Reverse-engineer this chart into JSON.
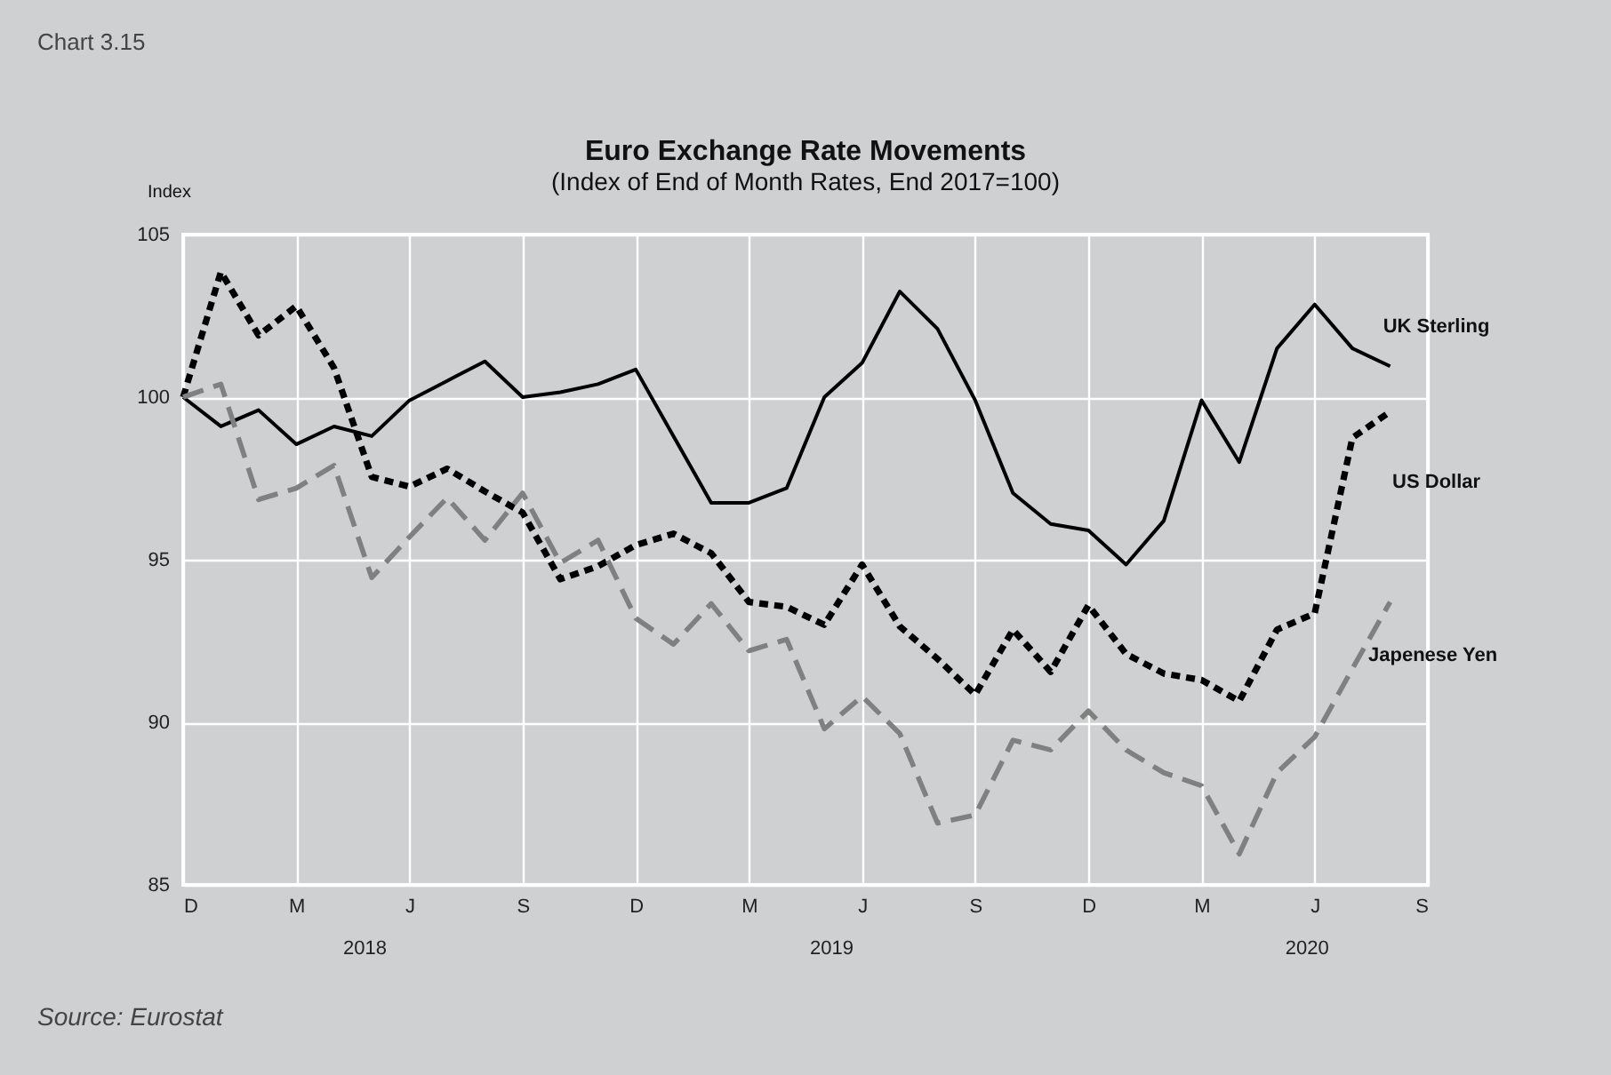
{
  "chart_data": {
    "type": "line",
    "title": "Euro Exchange Rate Movements",
    "subtitle": "(Index of End of Month Rates, End 2017=100)",
    "ylabel": "Index",
    "categories": [
      "D",
      null,
      null,
      "M",
      null,
      null,
      "J",
      null,
      null,
      "S",
      null,
      null,
      "D",
      null,
      null,
      "M",
      null,
      null,
      "J",
      null,
      null,
      "S",
      null,
      null,
      "D",
      null,
      null,
      "M",
      null,
      null,
      "J",
      null,
      null,
      "S"
    ],
    "series": [
      {
        "name": "UK Sterling",
        "color": "#000000",
        "line_style": "solid",
        "values": [
          100,
          99.1,
          99.6,
          98.55,
          99.1,
          98.8,
          99.9,
          100.5,
          101.1,
          100.0,
          100.15,
          100.4,
          100.85,
          98.8,
          96.75,
          96.75,
          97.2,
          100.0,
          101.05,
          103.25,
          102.1,
          99.9,
          97.05,
          96.1,
          95.9,
          94.85,
          96.2,
          99.9,
          98.0,
          101.5,
          102.85,
          101.5,
          100.95,
          null
        ]
      },
      {
        "name": "US Dollar",
        "color": "#000000",
        "line_style": "dotted",
        "values": [
          100,
          103.85,
          101.9,
          102.8,
          100.9,
          97.55,
          97.25,
          97.8,
          97.1,
          96.45,
          94.4,
          94.8,
          95.45,
          95.8,
          95.2,
          93.7,
          93.55,
          93.0,
          94.85,
          92.95,
          91.95,
          90.85,
          92.85,
          91.55,
          93.6,
          92.1,
          91.5,
          91.3,
          90.65,
          92.85,
          93.35,
          98.75,
          99.55,
          null
        ]
      },
      {
        "name": "Japenese Yen",
        "color": "#808080",
        "line_style": "dashed",
        "values": [
          100,
          100.4,
          96.85,
          97.2,
          97.9,
          94.45,
          95.7,
          96.9,
          95.6,
          97.05,
          94.9,
          95.6,
          93.2,
          92.4,
          93.65,
          92.2,
          92.55,
          89.8,
          90.8,
          89.65,
          86.9,
          87.15,
          89.45,
          89.15,
          90.35,
          89.15,
          88.45,
          88.05,
          85.95,
          88.45,
          89.55,
          91.65,
          93.7,
          null
        ]
      }
    ],
    "ylim": [
      85,
      105
    ],
    "yticks": [
      85,
      90,
      95,
      100,
      105
    ],
    "grid": true,
    "annotations": [
      "Chart 3.15",
      "2018",
      "2019",
      "2020",
      "Source: Eurostat"
    ]
  }
}
